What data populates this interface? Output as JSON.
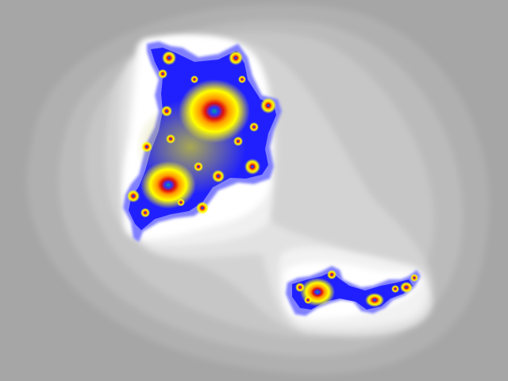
{
  "image": {
    "subject": "fractal-render",
    "palette": {
      "background_outer": "#a6a6a6",
      "background_mid": "#c4c4c4",
      "background_inner": "#e6e6e6",
      "halo": "#ffffff",
      "edge_light_blue": "#8888ff",
      "edge_blue": "#2020ff",
      "core_yellow": "#ffff00",
      "core_orange": "#ff9900",
      "core_red": "#e01010",
      "core_purple": "#a000c0",
      "core_teal": "#00a0a0",
      "olive_fill": "#b8b840"
    }
  }
}
